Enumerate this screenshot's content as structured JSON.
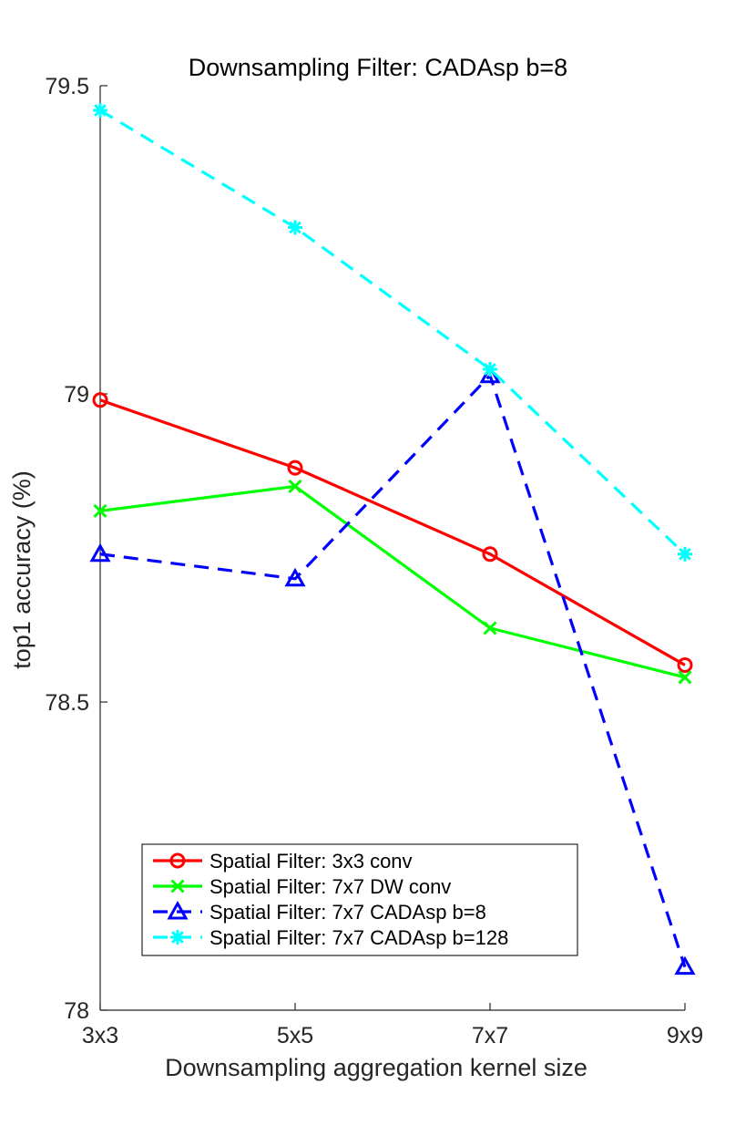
{
  "chart_data": {
    "type": "line",
    "title": "Downsampling Filter: CADAsp b=8",
    "xlabel": "Downsampling aggregation kernel size",
    "ylabel": "top1 accuracy (%)",
    "categories": [
      "3x3",
      "5x5",
      "7x7",
      "9x9"
    ],
    "ylim": [
      78,
      79.5
    ],
    "yticks": [
      78,
      78.5,
      79,
      79.5
    ],
    "ytick_labels": [
      "78",
      "78.5",
      "79",
      "79.5"
    ],
    "grid": false,
    "legend_position": "bottom-left",
    "series": [
      {
        "name": "Spatial Filter: 3x3 conv",
        "values": [
          78.99,
          78.88,
          78.74,
          78.56
        ],
        "color": "#ff0000",
        "marker": "circle",
        "dash": "solid"
      },
      {
        "name": "Spatial Filter: 7x7 DW conv",
        "values": [
          78.81,
          78.85,
          78.62,
          78.54
        ],
        "color": "#00ff00",
        "marker": "x",
        "dash": "solid"
      },
      {
        "name": "Spatial Filter: 7x7 CADAsp b=8",
        "values": [
          78.74,
          78.7,
          79.03,
          78.07
        ],
        "color": "#0000ff",
        "marker": "triangle",
        "dash": "dashed"
      },
      {
        "name": "Spatial Filter: 7x7 CADAsp b=128",
        "values": [
          79.46,
          79.27,
          79.04,
          78.74
        ],
        "color": "#00ffff",
        "marker": "star",
        "dash": "dashed"
      }
    ]
  }
}
